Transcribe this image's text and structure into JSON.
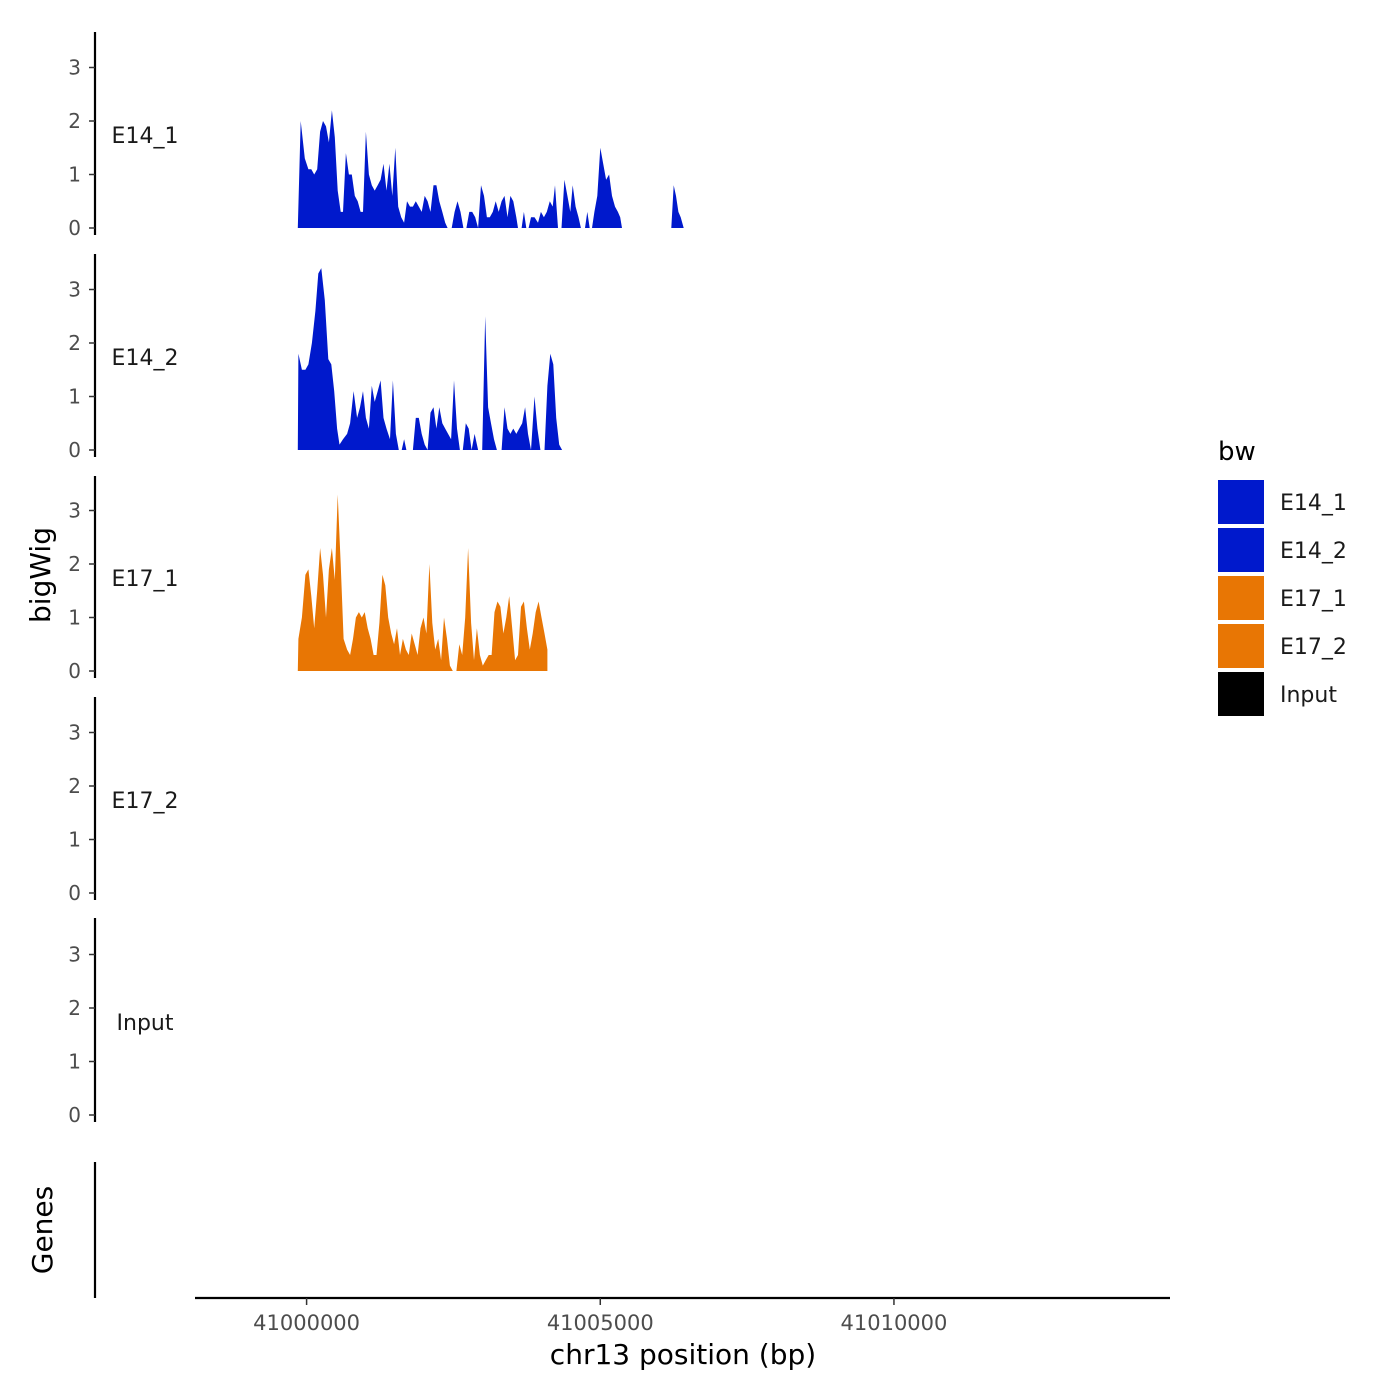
{
  "chart_data": {
    "type": "area",
    "title": "",
    "xlabel": "chr13 position (bp)",
    "ylabel": "bigWig",
    "genes_label": "Genes",
    "xlim": [
      40998100,
      41014700
    ],
    "ylim": [
      0,
      3.6
    ],
    "x_ticks": [
      41000000,
      41005000,
      41010000
    ],
    "x_tick_labels": [
      "41000000",
      "41005000",
      "41010000"
    ],
    "y_ticks": [
      0,
      1,
      2,
      3
    ],
    "y_tick_labels": [
      "0",
      "1",
      "2",
      "3"
    ],
    "legend": {
      "title": "bw",
      "placement": "right",
      "entries": [
        {
          "label": "E14_1",
          "color": "#0019CC"
        },
        {
          "label": "E14_2",
          "color": "#0019CC"
        },
        {
          "label": "E17_1",
          "color": "#E87604"
        },
        {
          "label": "E17_2",
          "color": "#E87604"
        },
        {
          "label": "Input",
          "color": "#000000"
        }
      ]
    },
    "series": [
      {
        "name": "E14_1",
        "color": "#0019CC",
        "points": [
          [
            40999850,
            0
          ],
          [
            40999900,
            2.0
          ],
          [
            40999970,
            1.3
          ],
          [
            41000030,
            1.1
          ],
          [
            41000080,
            1.1
          ],
          [
            41000130,
            1.0
          ],
          [
            41000180,
            1.1
          ],
          [
            41000230,
            1.8
          ],
          [
            41000280,
            2.0
          ],
          [
            41000330,
            1.9
          ],
          [
            41000380,
            1.6
          ],
          [
            41000430,
            2.2
          ],
          [
            41000480,
            1.7
          ],
          [
            41000530,
            0.7
          ],
          [
            41000580,
            0.3
          ],
          [
            41000620,
            0.3
          ],
          [
            41000670,
            1.4
          ],
          [
            41000720,
            1.0
          ],
          [
            41000770,
            1.0
          ],
          [
            41000820,
            0.6
          ],
          [
            41000870,
            0.5
          ],
          [
            41000920,
            0.3
          ],
          [
            41000960,
            0.3
          ],
          [
            41001010,
            1.8
          ],
          [
            41001060,
            1.0
          ],
          [
            41001110,
            0.8
          ],
          [
            41001160,
            0.7
          ],
          [
            41001210,
            0.8
          ],
          [
            41001260,
            0.9
          ],
          [
            41001310,
            1.2
          ],
          [
            41001360,
            0.7
          ],
          [
            41001410,
            1.2
          ],
          [
            41001460,
            0.6
          ],
          [
            41001510,
            1.5
          ],
          [
            41001560,
            0.4
          ],
          [
            41001610,
            0.2
          ],
          [
            41001660,
            0.1
          ],
          [
            41001710,
            0.5
          ],
          [
            41001760,
            0.4
          ],
          [
            41001810,
            0.4
          ],
          [
            41001860,
            0.5
          ],
          [
            41001910,
            0.4
          ],
          [
            41001960,
            0.3
          ],
          [
            41002010,
            0.6
          ],
          [
            41002060,
            0.5
          ],
          [
            41002110,
            0.3
          ],
          [
            41002160,
            0.8
          ],
          [
            41002210,
            0.8
          ],
          [
            41002260,
            0.5
          ],
          [
            41002310,
            0.3
          ],
          [
            41002360,
            0.1
          ],
          [
            41002400,
            0
          ],
          [
            41002470,
            0
          ],
          [
            41002520,
            0.3
          ],
          [
            41002570,
            0.5
          ],
          [
            41002620,
            0.3
          ],
          [
            41002670,
            0
          ],
          [
            41002720,
            0
          ],
          [
            41002770,
            0.3
          ],
          [
            41002820,
            0.3
          ],
          [
            41002870,
            0.2
          ],
          [
            41002920,
            0
          ],
          [
            41002970,
            0.8
          ],
          [
            41003020,
            0.6
          ],
          [
            41003070,
            0.2
          ],
          [
            41003120,
            0.2
          ],
          [
            41003170,
            0.3
          ],
          [
            41003220,
            0.5
          ],
          [
            41003270,
            0.3
          ],
          [
            41003320,
            0.5
          ],
          [
            41003370,
            0.6
          ],
          [
            41003420,
            0.2
          ],
          [
            41003470,
            0.6
          ],
          [
            41003520,
            0.5
          ],
          [
            41003570,
            0.2
          ],
          [
            41003600,
            0
          ],
          [
            41003660,
            0
          ],
          [
            41003700,
            0.3
          ],
          [
            41003740,
            0
          ],
          [
            41003780,
            0
          ],
          [
            41003820,
            0.2
          ],
          [
            41003880,
            0.2
          ],
          [
            41003940,
            0.1
          ],
          [
            41003990,
            0.3
          ],
          [
            41004040,
            0.2
          ],
          [
            41004090,
            0.3
          ],
          [
            41004140,
            0.5
          ],
          [
            41004190,
            0.4
          ],
          [
            41004230,
            0.8
          ],
          [
            41004280,
            0
          ],
          [
            41004340,
            0
          ],
          [
            41004390,
            0.9
          ],
          [
            41004440,
            0.6
          ],
          [
            41004490,
            0.3
          ],
          [
            41004530,
            0.8
          ],
          [
            41004580,
            0.4
          ],
          [
            41004630,
            0.2
          ],
          [
            41004670,
            0
          ],
          [
            41004740,
            0
          ],
          [
            41004780,
            0.3
          ],
          [
            41004820,
            0
          ],
          [
            41004860,
            0
          ],
          [
            41004900,
            0.3
          ],
          [
            41004950,
            0.6
          ],
          [
            41005000,
            1.5
          ],
          [
            41005050,
            1.2
          ],
          [
            41005100,
            0.9
          ],
          [
            41005150,
            1.0
          ],
          [
            41005200,
            0.6
          ],
          [
            41005250,
            0.4
          ],
          [
            41005300,
            0.3
          ],
          [
            41005340,
            0.2
          ],
          [
            41005370,
            0
          ],
          [
            41006210,
            0
          ],
          [
            41006250,
            0.8
          ],
          [
            41006290,
            0.6
          ],
          [
            41006330,
            0.3
          ],
          [
            41006370,
            0.2
          ],
          [
            41006420,
            0
          ]
        ],
        "_comment": "ignored"
      },
      {
        "name": "E14_2",
        "color": "#0019CC",
        "points": [
          [
            40999850,
            0
          ],
          [
            40999860,
            1.8
          ],
          [
            40999920,
            1.5
          ],
          [
            40999980,
            1.5
          ],
          [
            41000030,
            1.6
          ],
          [
            41000090,
            2.0
          ],
          [
            41000150,
            2.6
          ],
          [
            41000200,
            3.3
          ],
          [
            41000250,
            3.4
          ],
          [
            41000310,
            2.8
          ],
          [
            41000370,
            1.7
          ],
          [
            41000420,
            1.6
          ],
          [
            41000470,
            1.1
          ],
          [
            41000520,
            0.4
          ],
          [
            41000560,
            0.1
          ],
          [
            41000620,
            0.2
          ],
          [
            41000690,
            0.3
          ],
          [
            41000740,
            0.5
          ],
          [
            41000800,
            1.1
          ],
          [
            41000860,
            0.6
          ],
          [
            41000910,
            0.8
          ],
          [
            41000960,
            1.1
          ],
          [
            41001010,
            0.6
          ],
          [
            41001060,
            0.4
          ],
          [
            41001110,
            1.2
          ],
          [
            41001160,
            0.9
          ],
          [
            41001210,
            1.1
          ],
          [
            41001260,
            1.3
          ],
          [
            41001310,
            0.6
          ],
          [
            41001360,
            0.4
          ],
          [
            41001420,
            0.2
          ],
          [
            41001470,
            1.3
          ],
          [
            41001520,
            0.3
          ],
          [
            41001570,
            0
          ],
          [
            41001620,
            0
          ],
          [
            41001660,
            0.2
          ],
          [
            41001700,
            0
          ],
          [
            41001810,
            0
          ],
          [
            41001860,
            0.6
          ],
          [
            41001910,
            0.6
          ],
          [
            41001960,
            0.3
          ],
          [
            41002010,
            0.1
          ],
          [
            41002060,
            0
          ],
          [
            41002110,
            0.7
          ],
          [
            41002160,
            0.8
          ],
          [
            41002210,
            0.4
          ],
          [
            41002260,
            0.8
          ],
          [
            41002310,
            0.5
          ],
          [
            41002360,
            0.4
          ],
          [
            41002410,
            0.3
          ],
          [
            41002460,
            0.2
          ],
          [
            41002510,
            1.3
          ],
          [
            41002560,
            0.4
          ],
          [
            41002610,
            0
          ],
          [
            41002660,
            0
          ],
          [
            41002710,
            0.5
          ],
          [
            41002760,
            0.4
          ],
          [
            41002810,
            0
          ],
          [
            41002860,
            0.3
          ],
          [
            41002920,
            0
          ],
          [
            41002990,
            0
          ],
          [
            41003040,
            2.5
          ],
          [
            41003090,
            0.8
          ],
          [
            41003140,
            0.5
          ],
          [
            41003190,
            0.2
          ],
          [
            41003240,
            0
          ],
          [
            41003320,
            0
          ],
          [
            41003370,
            0.8
          ],
          [
            41003420,
            0.4
          ],
          [
            41003470,
            0.3
          ],
          [
            41003520,
            0.4
          ],
          [
            41003570,
            0.3
          ],
          [
            41003620,
            0.4
          ],
          [
            41003670,
            0.5
          ],
          [
            41003720,
            0.8
          ],
          [
            41003770,
            0.3
          ],
          [
            41003820,
            0
          ],
          [
            41003880,
            1.0
          ],
          [
            41003930,
            0.4
          ],
          [
            41003980,
            0
          ],
          [
            41004050,
            0
          ],
          [
            41004100,
            1.2
          ],
          [
            41004150,
            1.8
          ],
          [
            41004200,
            1.6
          ],
          [
            41004250,
            0.6
          ],
          [
            41004300,
            0.1
          ],
          [
            41004350,
            0
          ]
        ],
        "_comment": "ignored"
      },
      {
        "name": "E17_1",
        "color": "#E87604",
        "points": [
          [
            40999850,
            0
          ],
          [
            40999860,
            0.6
          ],
          [
            40999920,
            1.0
          ],
          [
            40999980,
            1.8
          ],
          [
            41000030,
            1.9
          ],
          [
            41000080,
            1.4
          ],
          [
            41000130,
            0.8
          ],
          [
            41000180,
            1.5
          ],
          [
            41000230,
            2.3
          ],
          [
            41000280,
            1.8
          ],
          [
            41000330,
            1.0
          ],
          [
            41000380,
            1.9
          ],
          [
            41000430,
            2.3
          ],
          [
            41000480,
            1.7
          ],
          [
            41000530,
            3.3
          ],
          [
            41000580,
            2.0
          ],
          [
            41000630,
            0.6
          ],
          [
            41000690,
            0.4
          ],
          [
            41000740,
            0.3
          ],
          [
            41000790,
            0.6
          ],
          [
            41000840,
            1.0
          ],
          [
            41000890,
            1.1
          ],
          [
            41000940,
            1.0
          ],
          [
            41000990,
            1.1
          ],
          [
            41001040,
            0.8
          ],
          [
            41001090,
            0.6
          ],
          [
            41001140,
            0.3
          ],
          [
            41001190,
            0.3
          ],
          [
            41001240,
            0.9
          ],
          [
            41001290,
            1.8
          ],
          [
            41001340,
            1.6
          ],
          [
            41001390,
            1.0
          ],
          [
            41001440,
            0.7
          ],
          [
            41001490,
            0.5
          ],
          [
            41001540,
            0.8
          ],
          [
            41001590,
            0.3
          ],
          [
            41001640,
            0.6
          ],
          [
            41001690,
            0.4
          ],
          [
            41001740,
            0.3
          ],
          [
            41001790,
            0.7
          ],
          [
            41001840,
            0.5
          ],
          [
            41001890,
            0.3
          ],
          [
            41001940,
            0.8
          ],
          [
            41001990,
            1.0
          ],
          [
            41002040,
            0.7
          ],
          [
            41002090,
            2.0
          ],
          [
            41002140,
            0.9
          ],
          [
            41002190,
            0.4
          ],
          [
            41002240,
            0.6
          ],
          [
            41002290,
            0.2
          ],
          [
            41002340,
            1.0
          ],
          [
            41002390,
            0.6
          ],
          [
            41002440,
            0.1
          ],
          [
            41002490,
            0
          ],
          [
            41002550,
            0
          ],
          [
            41002600,
            0.5
          ],
          [
            41002650,
            0.3
          ],
          [
            41002700,
            1.0
          ],
          [
            41002750,
            2.3
          ],
          [
            41002800,
            0.9
          ],
          [
            41002850,
            0.2
          ],
          [
            41002900,
            0.8
          ],
          [
            41002950,
            0.3
          ],
          [
            41003000,
            0.1
          ],
          [
            41003050,
            0.2
          ],
          [
            41003100,
            0.3
          ],
          [
            41003150,
            0.3
          ],
          [
            41003200,
            1.1
          ],
          [
            41003250,
            1.3
          ],
          [
            41003300,
            1.2
          ],
          [
            41003350,
            0.7
          ],
          [
            41003400,
            1.0
          ],
          [
            41003450,
            1.4
          ],
          [
            41003500,
            0.8
          ],
          [
            41003550,
            0.2
          ],
          [
            41003600,
            0.3
          ],
          [
            41003650,
            1.2
          ],
          [
            41003700,
            1.3
          ],
          [
            41003750,
            0.8
          ],
          [
            41003800,
            0.4
          ],
          [
            41003850,
            0.7
          ],
          [
            41003900,
            1.1
          ],
          [
            41003950,
            1.3
          ],
          [
            41004000,
            1.0
          ],
          [
            41004050,
            0.7
          ],
          [
            41004100,
            0.4
          ]
        ],
        "_comment": "ignored"
      }
    ]
  }
}
